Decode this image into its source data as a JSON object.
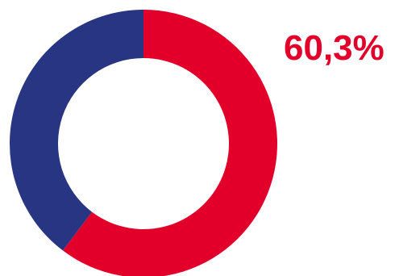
{
  "chart_data": {
    "type": "pie",
    "variant": "donut",
    "slices": [
      {
        "value": 60.3,
        "color": "#e2002b"
      },
      {
        "value": 39.7,
        "color": "#283583"
      }
    ],
    "labels": [
      {
        "text": "60,3%",
        "color": "#e2002b"
      }
    ],
    "start_angle_deg": 0,
    "direction": "clockwise",
    "legend": "none",
    "grid": false
  }
}
